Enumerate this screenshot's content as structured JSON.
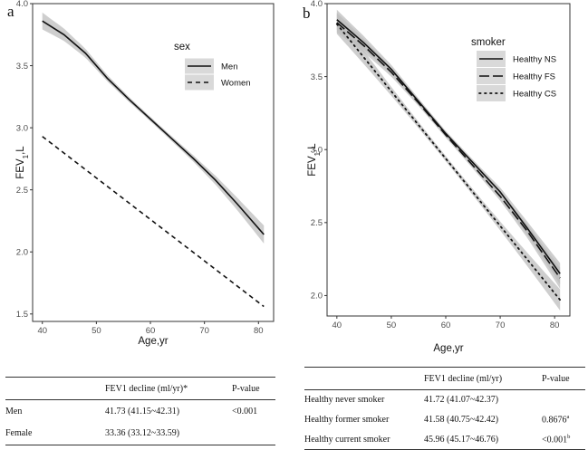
{
  "chart_data": [
    {
      "panel": "a",
      "type": "line",
      "xlabel": "Age,yr",
      "ylabel": "FEV1,L",
      "xlim": [
        38.2,
        82.8
      ],
      "ylim": [
        1.44,
        4.0
      ],
      "xticks": [
        40,
        50,
        60,
        70,
        80
      ],
      "yticks": [
        1.5,
        2.0,
        2.5,
        3.0,
        3.5,
        4.0
      ],
      "ytick_labels": [
        "1.5",
        "2.0",
        "2.5",
        "3.0",
        "3.5",
        "4.0"
      ],
      "legend": {
        "title": "sex",
        "position": "top-right"
      },
      "series": [
        {
          "name": "Men",
          "dash": "solid",
          "ci": true,
          "x": [
            40,
            44,
            48,
            52,
            56,
            60,
            64,
            68,
            72,
            76,
            81
          ],
          "y": [
            3.86,
            3.75,
            3.6,
            3.4,
            3.23,
            3.07,
            2.91,
            2.75,
            2.58,
            2.39,
            2.14
          ]
        },
        {
          "name": "Women",
          "dash": "dashed",
          "ci": false,
          "x": [
            40,
            81
          ],
          "y": [
            2.93,
            1.56
          ]
        }
      ]
    },
    {
      "panel": "b",
      "type": "line",
      "xlabel": "Age,yr",
      "ylabel": "FEV1,L",
      "xlim": [
        38.2,
        82.8
      ],
      "ylim": [
        1.86,
        4.0
      ],
      "xticks": [
        40,
        50,
        60,
        70,
        80
      ],
      "yticks": [
        2.0,
        2.5,
        3.0,
        3.5,
        4.0
      ],
      "ytick_labels": [
        "2.0",
        "2.5",
        "3.0",
        "3.5",
        "4.0"
      ],
      "legend": {
        "title": "smoker",
        "position": "top-right"
      },
      "series": [
        {
          "name": "Healthy NS",
          "dash": "solid",
          "ci": true,
          "x": [
            40,
            45,
            50,
            55,
            60,
            65,
            70,
            75,
            81
          ],
          "y": [
            3.89,
            3.73,
            3.55,
            3.33,
            3.11,
            2.91,
            2.71,
            2.46,
            2.15
          ]
        },
        {
          "name": "Healthy FS",
          "dash": "longdash",
          "ci": true,
          "x": [
            40,
            45,
            50,
            55,
            60,
            65,
            70,
            75,
            81
          ],
          "y": [
            3.87,
            3.71,
            3.53,
            3.32,
            3.1,
            2.89,
            2.68,
            2.44,
            2.12
          ]
        },
        {
          "name": "Healthy CS",
          "dash": "dotted",
          "ci": true,
          "x": [
            40,
            81
          ],
          "y": [
            3.86,
            1.97
          ]
        }
      ]
    }
  ],
  "table_a": {
    "headers": [
      "",
      "FEV1 decline (ml/yr)*",
      "P-value"
    ],
    "rows": [
      [
        "Men",
        "41.73 (41.15~42.31)",
        "<0.001"
      ],
      [
        "Female",
        "33.36 (33.12~33.59)",
        ""
      ]
    ]
  },
  "table_b": {
    "headers": [
      "",
      "FEV1 decline (ml/yr)",
      "P-value"
    ],
    "rows": [
      {
        "label": "Healthy never smoker",
        "value": "41.72 (41.07~42.37)",
        "p": "",
        "sup": ""
      },
      {
        "label": "Healthy former smoker",
        "value": "41.58 (40.75~42.42)",
        "p": "0.8676",
        "sup": "a"
      },
      {
        "label": "Healthy current smoker",
        "value": "45.96 (45.17~46.76)",
        "p": "<0.001",
        "sup": "b"
      }
    ]
  },
  "panel_labels": {
    "a": "a",
    "b": "b"
  },
  "colors": {
    "line": "#111111",
    "ci_band": "#bdbdbd",
    "legend_key_bg": "#d9d9d9"
  }
}
